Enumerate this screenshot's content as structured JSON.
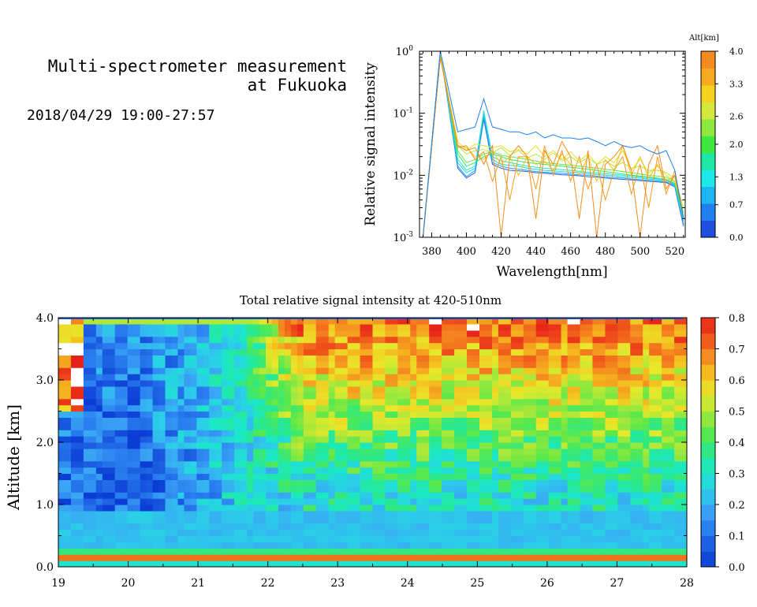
{
  "header": {
    "title_line1": "Multi-spectrometer measurement",
    "title_line2": "at Fukuoka",
    "date_range": "2018/04/29 19:00-27:57"
  },
  "colors": {
    "spectrum_scale": [
      "#1f4fe0",
      "#1f7ff0",
      "#1fb5f5",
      "#1fe8e8",
      "#1fe8a5",
      "#3ee83e",
      "#8fe83e",
      "#d6e83e",
      "#f5d21f",
      "#f5aa1f",
      "#f58a1f"
    ],
    "heatmap_scale": [
      "#0a3cd6",
      "#1a5ae0",
      "#2a7ff0",
      "#3aa5f5",
      "#2ad0e8",
      "#1ae8c8",
      "#2ae88a",
      "#5ae84a",
      "#a5e83a",
      "#e8e82a",
      "#f5c21f",
      "#f58a1f",
      "#f0501a",
      "#e6201a"
    ]
  },
  "chart_data": [
    {
      "type": "line",
      "title": "",
      "xlabel": "Wavelength[nm]",
      "ylabel": "Relative signal intensity",
      "xlim": [
        373,
        526
      ],
      "ylim": [
        0.001,
        1
      ],
      "yscale": "log",
      "xticks": [
        380,
        400,
        420,
        440,
        460,
        480,
        500,
        520
      ],
      "yticks": [
        {
          "value": 0.001,
          "base": "10",
          "exp": "-3"
        },
        {
          "value": 0.01,
          "base": "10",
          "exp": "-2"
        },
        {
          "value": 0.1,
          "base": "10",
          "exp": "-1"
        },
        {
          "value": 1,
          "base": "10",
          "exp": "0"
        }
      ],
      "colorbar": {
        "label": "Alt[km]",
        "ticks": [
          "0.0",
          "0.7",
          "1.3",
          "2.0",
          "2.6",
          "3.3",
          "4.0"
        ],
        "range": [
          0,
          4
        ]
      },
      "x": [
        375,
        385,
        395,
        400,
        405,
        410,
        415,
        420,
        425,
        430,
        435,
        440,
        445,
        450,
        455,
        460,
        465,
        470,
        475,
        480,
        485,
        490,
        495,
        500,
        505,
        510,
        515,
        520,
        525
      ],
      "series": [
        {
          "alt": 0.2,
          "values": [
            0.001,
            1.0,
            0.013,
            0.009,
            0.011,
            0.08,
            0.015,
            0.013,
            0.012,
            0.0118,
            0.0115,
            0.011,
            0.0108,
            0.0105,
            0.0102,
            0.01,
            0.0098,
            0.0095,
            0.0093,
            0.009,
            0.0088,
            0.0086,
            0.0084,
            0.0082,
            0.008,
            0.0078,
            0.0076,
            0.0065,
            0.0015
          ]
        },
        {
          "alt": 0.6,
          "values": [
            0.001,
            1.0,
            0.014,
            0.0095,
            0.012,
            0.09,
            0.016,
            0.014,
            0.013,
            0.0125,
            0.012,
            0.0115,
            0.0112,
            0.011,
            0.0107,
            0.0105,
            0.0102,
            0.01,
            0.0097,
            0.0094,
            0.0092,
            0.009,
            0.0087,
            0.0085,
            0.0083,
            0.0081,
            0.0078,
            0.0068,
            0.0016
          ]
        },
        {
          "alt": 1.0,
          "values": [
            0.001,
            1.0,
            0.016,
            0.011,
            0.013,
            0.1,
            0.018,
            0.015,
            0.0145,
            0.014,
            0.013,
            0.0125,
            0.012,
            0.0118,
            0.0115,
            0.0112,
            0.011,
            0.0106,
            0.0103,
            0.01,
            0.0098,
            0.0095,
            0.0092,
            0.009,
            0.0087,
            0.0085,
            0.0082,
            0.007,
            0.0018
          ]
        },
        {
          "alt": 1.4,
          "values": [
            0.001,
            1.0,
            0.018,
            0.012,
            0.014,
            0.11,
            0.02,
            0.017,
            0.016,
            0.015,
            0.014,
            0.0135,
            0.013,
            0.0127,
            0.0123,
            0.012,
            0.0116,
            0.0112,
            0.0109,
            0.0106,
            0.0103,
            0.01,
            0.0097,
            0.0094,
            0.0091,
            0.0088,
            0.0085,
            0.0072,
            0.002
          ]
        },
        {
          "alt": 1.8,
          "values": [
            0.001,
            0.95,
            0.022,
            0.014,
            0.016,
            0.02,
            0.022,
            0.02,
            0.018,
            0.017,
            0.016,
            0.0155,
            0.015,
            0.0145,
            0.014,
            0.0135,
            0.013,
            0.0125,
            0.012,
            0.0115,
            0.011,
            0.0105,
            0.01,
            0.0097,
            0.0094,
            0.009,
            0.0086,
            0.0074,
            0.0022
          ]
        },
        {
          "alt": 2.2,
          "values": [
            0.001,
            0.9,
            0.025,
            0.016,
            0.018,
            0.022,
            0.024,
            0.021,
            0.02,
            0.019,
            0.018,
            0.017,
            0.016,
            0.0155,
            0.015,
            0.0145,
            0.014,
            0.0135,
            0.013,
            0.0125,
            0.012,
            0.0115,
            0.011,
            0.0105,
            0.01,
            0.0097,
            0.0093,
            0.0078,
            0.0025
          ]
        },
        {
          "alt": 2.6,
          "values": [
            0.001,
            0.9,
            0.03,
            0.022,
            0.025,
            0.026,
            0.023,
            0.028,
            0.021,
            0.025,
            0.019,
            0.022,
            0.018,
            0.023,
            0.017,
            0.02,
            0.016,
            0.019,
            0.015,
            0.017,
            0.014,
            0.016,
            0.013,
            0.014,
            0.012,
            0.012,
            0.011,
            0.009,
            0.003
          ]
        },
        {
          "alt": 3.0,
          "values": [
            0.001,
            0.85,
            0.035,
            0.025,
            0.032,
            0.03,
            0.028,
            0.03,
            0.024,
            0.026,
            0.022,
            0.03,
            0.02,
            0.025,
            0.018,
            0.024,
            0.017,
            0.022,
            0.015,
            0.02,
            0.016,
            0.025,
            0.012,
            0.018,
            0.011,
            0.014,
            0.01,
            0.008,
            0.003
          ]
        },
        {
          "alt": 3.4,
          "values": [
            0.001,
            0.8,
            0.03,
            0.028,
            0.02,
            0.018,
            0.025,
            0.015,
            0.02,
            0.01,
            0.02,
            0.015,
            0.017,
            0.012,
            0.022,
            0.015,
            0.01,
            0.02,
            0.008,
            0.018,
            0.012,
            0.03,
            0.01,
            0.02,
            0.009,
            0.015,
            0.008,
            0.01,
            0.002
          ]
        },
        {
          "alt": 3.8,
          "values": [
            0.001,
            0.8,
            0.028,
            0.03,
            0.018,
            0.024,
            0.008,
            0.02,
            0.004,
            0.02,
            0.02,
            0.006,
            0.03,
            0.01,
            0.025,
            0.008,
            0.02,
            0.006,
            0.015,
            0.004,
            0.012,
            0.02,
            0.005,
            0.015,
            0.003,
            0.02,
            0.005,
            0.012,
            0.002
          ]
        },
        {
          "alt": 4.0,
          "values": [
            0.001,
            0.8,
            0.03,
            0.025,
            0.028,
            0.015,
            0.03,
            0.001,
            0.02,
            0.03,
            0.02,
            0.002,
            0.025,
            0.015,
            0.035,
            0.02,
            0.002,
            0.025,
            0.001,
            0.015,
            0.02,
            0.03,
            0.012,
            0.001,
            0.015,
            0.03,
            0.006,
            0.01,
            0.002
          ]
        },
        {
          "alt": 0.4,
          "values": [
            0.001,
            1.0,
            0.05,
            0.055,
            0.06,
            0.17,
            0.06,
            0.055,
            0.05,
            0.05,
            0.045,
            0.05,
            0.04,
            0.045,
            0.04,
            0.04,
            0.038,
            0.04,
            0.035,
            0.03,
            0.035,
            0.03,
            0.028,
            0.03,
            0.025,
            0.022,
            0.025,
            0.012,
            0.002
          ]
        }
      ]
    },
    {
      "type": "heatmap",
      "title": "Total relative signal intensity at 420-510nm",
      "xlabel": "",
      "ylabel": "Altitude [km]",
      "xlim": [
        19,
        28
      ],
      "ylim": [
        0,
        4
      ],
      "xticks": [
        "19",
        "20",
        "21",
        "22",
        "23",
        "24",
        "25",
        "26",
        "27",
        "28"
      ],
      "yticks": [
        "0.0",
        "1.0",
        "2.0",
        "3.0",
        "4.0"
      ],
      "colorbar": {
        "range": [
          0,
          0.8
        ],
        "ticks": [
          "0.0",
          "0.1",
          "0.2",
          "0.3",
          "0.4",
          "0.5",
          "0.6",
          "0.7",
          "0.8"
        ]
      },
      "time_range": [
        19.0,
        27.95
      ],
      "features": {
        "low_band_altitude_km": [
          0.15,
          0.3
        ],
        "low_band_value": 0.6,
        "early_low_region": {
          "time": [
            19.0,
            21.3
          ],
          "alt": [
            0.9,
            3.9
          ],
          "value": 0.1
        },
        "late_high_region": {
          "time": [
            22.0,
            27.95
          ],
          "alt": [
            2.3,
            4.0
          ],
          "value": 0.6
        },
        "saturated_over_range": "#ffffff"
      }
    }
  ]
}
